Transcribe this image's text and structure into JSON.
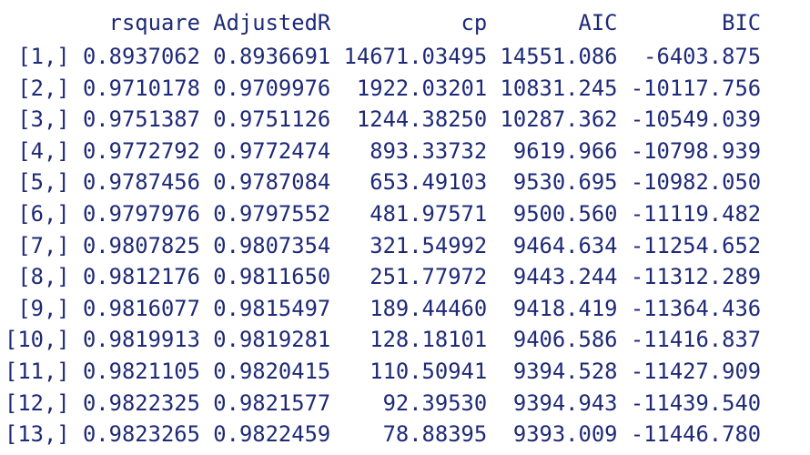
{
  "table": {
    "header": [
      "rsquare",
      "AdjustedR",
      "cp",
      "AIC",
      "BIC"
    ],
    "rows": [
      [
        "[1,]",
        "0.8937062",
        "0.8936691",
        "14671.03495",
        "14551.086",
        "-6403.875"
      ],
      [
        "[2,]",
        "0.9710178",
        "0.9709976",
        "1922.03201",
        "10831.245",
        "-10117.756"
      ],
      [
        "[3,]",
        "0.9751387",
        "0.9751126",
        "1244.38250",
        "10287.362",
        "-10549.039"
      ],
      [
        "[4,]",
        "0.9772792",
        "0.9772474",
        "893.33732",
        "9619.966",
        "-10798.939"
      ],
      [
        "[5,]",
        "0.9787456",
        "0.9787084",
        "653.49103",
        "9530.695",
        "-10982.050"
      ],
      [
        "[6,]",
        "0.9797976",
        "0.9797552",
        "481.97571",
        "9500.560",
        "-11119.482"
      ],
      [
        "[7,]",
        "0.9807825",
        "0.9807354",
        "321.54992",
        "9464.634",
        "-11254.652"
      ],
      [
        "[8,]",
        "0.9812176",
        "0.9811650",
        "251.77972",
        "9443.244",
        "-11312.289"
      ],
      [
        "[9,]",
        "0.9816077",
        "0.9815497",
        "189.44460",
        "9418.419",
        "-11364.436"
      ],
      [
        "[10,]",
        "0.9819913",
        "0.9819281",
        "128.18101",
        "9406.586",
        "-11416.837"
      ],
      [
        "[11,]",
        "0.9821105",
        "0.9820415",
        "110.50941",
        "9394.528",
        "-11427.909"
      ],
      [
        "[12,]",
        "0.9822325",
        "0.9821577",
        "92.39530",
        "9394.943",
        "-11439.540"
      ],
      [
        "[13,]",
        "0.9823265",
        "0.9822459",
        "78.88395",
        "9393.009",
        "-11446.780"
      ]
    ]
  }
}
